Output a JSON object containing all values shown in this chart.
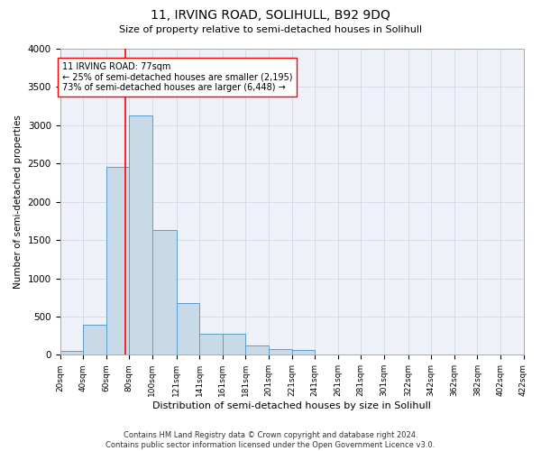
{
  "title": "11, IRVING ROAD, SOLIHULL, B92 9DQ",
  "subtitle": "Size of property relative to semi-detached houses in Solihull",
  "xlabel": "Distribution of semi-detached houses by size in Solihull",
  "ylabel": "Number of semi-detached properties",
  "footer_line1": "Contains HM Land Registry data © Crown copyright and database right 2024.",
  "footer_line2": "Contains public sector information licensed under the Open Government Licence v3.0.",
  "annotation_text": "11 IRVING ROAD: 77sqm\n← 25% of semi-detached houses are smaller (2,195)\n73% of semi-detached houses are larger (6,448) →",
  "bin_edges": [
    20,
    40,
    60,
    80,
    100,
    121,
    141,
    161,
    181,
    201,
    221,
    241,
    261,
    281,
    301,
    322,
    342,
    362,
    382,
    402,
    422
  ],
  "bar_heights": [
    50,
    390,
    2450,
    3130,
    1630,
    680,
    275,
    270,
    120,
    70,
    60,
    0,
    0,
    0,
    0,
    0,
    0,
    0,
    0,
    0
  ],
  "bar_color": "#c8d9e8",
  "bar_edge_color": "#5a9ec9",
  "vline_color": "red",
  "vline_x": 77,
  "annotation_box_color": "white",
  "annotation_box_edge": "red",
  "ylim": [
    0,
    4000
  ],
  "yticks": [
    0,
    500,
    1000,
    1500,
    2000,
    2500,
    3000,
    3500,
    4000
  ],
  "grid_color": "#d0d8e8",
  "bg_color": "#eef2f8",
  "title_fontsize": 10,
  "subtitle_fontsize": 8,
  "footer_fontsize": 6,
  "ylabel_fontsize": 7.5,
  "xlabel_fontsize": 8,
  "ytick_fontsize": 7.5,
  "xtick_fontsize": 6.5,
  "annot_fontsize": 7
}
